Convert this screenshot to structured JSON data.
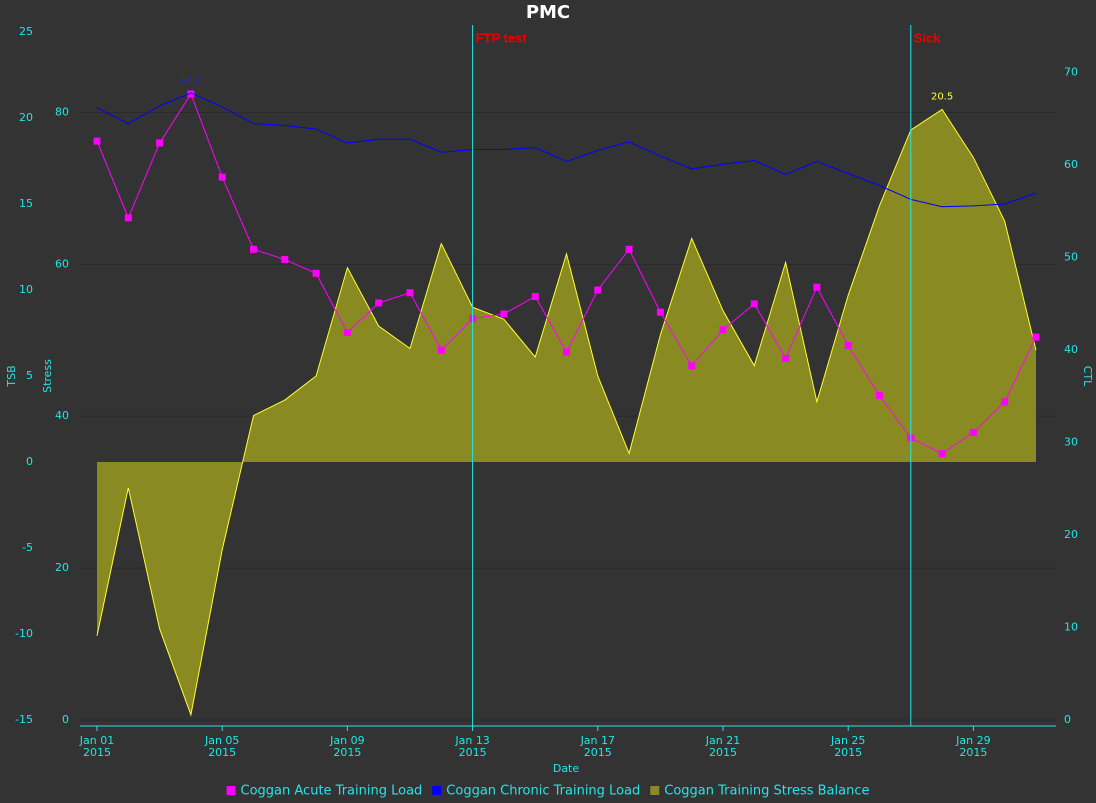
{
  "chart_data": {
    "type": "line",
    "title": "PMC",
    "xlabel": "Date",
    "ylabel": "TSB",
    "y3label": "Stress",
    "y2label": "CTL",
    "x": [
      "2015-01-01",
      "2015-01-02",
      "2015-01-03",
      "2015-01-04",
      "2015-01-05",
      "2015-01-06",
      "2015-01-07",
      "2015-01-08",
      "2015-01-09",
      "2015-01-10",
      "2015-01-11",
      "2015-01-12",
      "2015-01-13",
      "2015-01-14",
      "2015-01-15",
      "2015-01-16",
      "2015-01-17",
      "2015-01-18",
      "2015-01-19",
      "2015-01-20",
      "2015-01-21",
      "2015-01-22",
      "2015-01-23",
      "2015-01-24",
      "2015-01-25",
      "2015-01-26",
      "2015-01-27",
      "2015-01-28",
      "2015-01-29",
      "2015-01-30",
      "2015-01-31"
    ],
    "xlim": [
      "2015-01-01",
      "2015-01-31"
    ],
    "xticks": [
      {
        "value": "2015-01-01",
        "label": "Jan 01\n2015"
      },
      {
        "value": "2015-01-05",
        "label": "Jan 05\n2015"
      },
      {
        "value": "2015-01-09",
        "label": "Jan 09\n2015"
      },
      {
        "value": "2015-01-13",
        "label": "Jan 13\n2015"
      },
      {
        "value": "2015-01-17",
        "label": "Jan 17\n2015"
      },
      {
        "value": "2015-01-21",
        "label": "Jan 21\n2015"
      },
      {
        "value": "2015-01-25",
        "label": "Jan 25\n2015"
      },
      {
        "value": "2015-01-29",
        "label": "Jan 29\n2015"
      }
    ],
    "ylim": [
      -15,
      25
    ],
    "yticks": [
      -15,
      -10,
      -5,
      0,
      5,
      10,
      15,
      20,
      25
    ],
    "y3lim": [
      0,
      90.6
    ],
    "y3ticks": [
      0,
      20,
      40,
      60,
      80
    ],
    "y2lim": [
      0,
      74.4
    ],
    "y2ticks": [
      0,
      10,
      20,
      30,
      40,
      50,
      60,
      70
    ],
    "grid": true,
    "legend": "bottom",
    "series": [
      {
        "name": "Coggan Acute Training Load",
        "color": "#ff00ff",
        "kind": "line",
        "marker": "square",
        "axis": "y2",
        "values": [
          62.6,
          54.3,
          62.4,
          67.7,
          58.7,
          50.9,
          49.8,
          48.3,
          41.9,
          45.1,
          46.2,
          40.0,
          43.4,
          43.9,
          45.8,
          39.8,
          46.5,
          50.9,
          44.1,
          38.3,
          42.2,
          45.0,
          39.1,
          46.8,
          40.5,
          35.1,
          30.5,
          28.8,
          31.1,
          34.4,
          41.4
        ]
      },
      {
        "name": "Coggan Chronic Training Load",
        "color": "#0000ff",
        "kind": "line",
        "axis": "y2",
        "values": [
          66.2,
          64.5,
          66.4,
          67.8,
          66.3,
          64.5,
          64.3,
          63.9,
          62.4,
          62.8,
          62.8,
          61.4,
          61.7,
          61.7,
          61.9,
          60.4,
          61.6,
          62.5,
          61.0,
          59.6,
          60.1,
          60.5,
          59.0,
          60.4,
          59.1,
          57.8,
          56.3,
          55.5,
          55.6,
          55.8,
          57.0
        ]
      },
      {
        "name": "Coggan Training Stress Balance",
        "color": "#ffff33",
        "fill": "#8a8a22",
        "kind": "area",
        "axis": "y",
        "values": [
          -10.1,
          -1.5,
          -9.7,
          -14.7,
          -5.1,
          2.7,
          3.6,
          5.0,
          11.3,
          7.9,
          6.6,
          12.7,
          9.0,
          8.3,
          6.1,
          12.1,
          5.0,
          0.5,
          7.4,
          13.0,
          8.8,
          5.6,
          11.6,
          3.5,
          9.7,
          14.9,
          19.3,
          20.5,
          17.7,
          14.0,
          6.5
        ]
      }
    ],
    "annotations": [
      {
        "x": "2015-01-04",
        "y": 67.7,
        "axis": "y2",
        "color": "#2222ff"
      },
      {
        "x": "2015-01-28",
        "y": 20.5,
        "axis": "y",
        "color": "#ffff33"
      }
    ],
    "events": [
      {
        "x": "2015-01-13",
        "label": "FTP test"
      },
      {
        "x": "2015-01-27",
        "label": "Sick"
      }
    ]
  }
}
